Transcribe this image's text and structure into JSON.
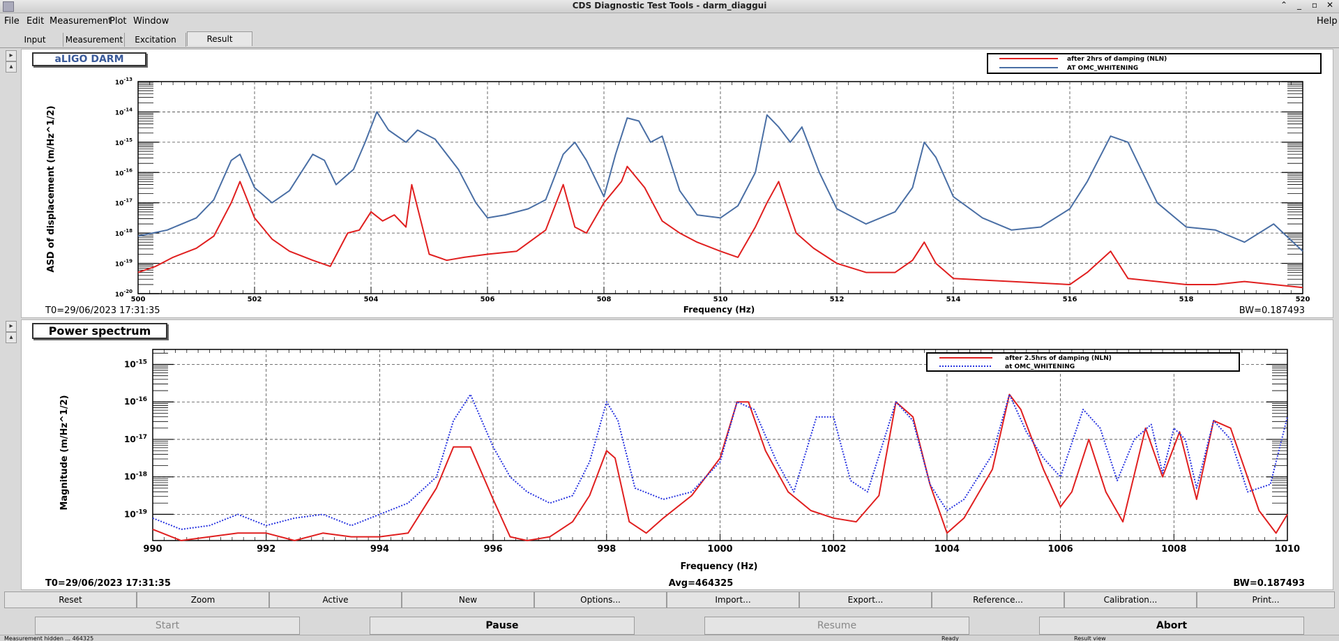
{
  "window": {
    "title": "CDS Diagnostic Test Tools - darm_diaggui"
  },
  "menu": {
    "file": "File",
    "edit": "Edit",
    "measurement": "Measurement",
    "plot": "Plot",
    "window": "Window",
    "help": "Help"
  },
  "tabs": [
    {
      "label": "Input"
    },
    {
      "label": "Measurement"
    },
    {
      "label": "Excitation"
    },
    {
      "label": "Result"
    }
  ],
  "plot1": {
    "title": "aLIGO DARM",
    "t0": "T0=29/06/2023 17:31:35",
    "bw": "BW=0.187493",
    "chart_data": {
      "type": "line",
      "xlabel": "Frequency (Hz)",
      "ylabel": "ASD of displacement (m/Hz^1/2)",
      "xlim": [
        500,
        520
      ],
      "ylim_log10": [
        -20,
        -13
      ],
      "log_y": true,
      "grid": true,
      "legend_position": "top-right",
      "x_ticks": [
        "500",
        "502",
        "504",
        "506",
        "508",
        "510",
        "512",
        "514",
        "516",
        "518",
        "520"
      ],
      "y_ticks": [
        "10^-13",
        "10^-14",
        "10^-15",
        "10^-16",
        "10^-17",
        "10^-18",
        "10^-19",
        "10^-20"
      ],
      "series": [
        {
          "name": "after 2hrs of damping (NLN)",
          "color": "#e02020",
          "style": "solid",
          "x": [
            500,
            500.3,
            500.6,
            501,
            501.3,
            501.6,
            501.75,
            502,
            502.3,
            502.6,
            503,
            503.3,
            503.6,
            503.8,
            504,
            504.2,
            504.4,
            504.6,
            504.7,
            505,
            505.3,
            505.6,
            506,
            506.5,
            507,
            507.3,
            507.5,
            507.7,
            508,
            508.3,
            508.4,
            508.7,
            509,
            509.3,
            509.6,
            510,
            510.3,
            510.6,
            510.8,
            511,
            511.3,
            511.6,
            512,
            512.5,
            513,
            513.3,
            513.5,
            513.7,
            514,
            515,
            516,
            516.3,
            516.7,
            517,
            517.5,
            518,
            518.5,
            519,
            520
          ],
          "y": [
            -19.3,
            -19.1,
            -18.8,
            -18.5,
            -18.1,
            -17.0,
            -16.3,
            -17.5,
            -18.2,
            -18.6,
            -18.9,
            -19.1,
            -18.0,
            -17.9,
            -17.3,
            -17.6,
            -17.4,
            -17.8,
            -16.4,
            -18.7,
            -18.9,
            -18.8,
            -18.7,
            -18.6,
            -17.9,
            -16.4,
            -17.8,
            -18.0,
            -17.0,
            -16.3,
            -15.8,
            -16.5,
            -17.6,
            -18.0,
            -18.3,
            -18.6,
            -18.8,
            -17.8,
            -17.0,
            -16.3,
            -18.0,
            -18.5,
            -19.0,
            -19.3,
            -19.3,
            -18.9,
            -18.3,
            -19.0,
            -19.5,
            -19.6,
            -19.7,
            -19.3,
            -18.6,
            -19.5,
            -19.6,
            -19.7,
            -19.7,
            -19.6,
            -19.8
          ]
        },
        {
          "name": "AT OMC_WHITENING",
          "color": "#4a6fa5",
          "style": "solid",
          "x": [
            500,
            500.5,
            501,
            501.3,
            501.6,
            501.75,
            502,
            502.3,
            502.6,
            503,
            503.2,
            503.4,
            503.7,
            503.9,
            504.1,
            504.3,
            504.6,
            504.8,
            505.1,
            505.5,
            505.8,
            506,
            506.3,
            506.7,
            507,
            507.3,
            507.5,
            507.7,
            508,
            508.2,
            508.4,
            508.6,
            508.8,
            509,
            509.3,
            509.6,
            510,
            510.3,
            510.6,
            510.8,
            511,
            511.2,
            511.4,
            511.7,
            512,
            512.5,
            513,
            513.3,
            513.5,
            513.7,
            514,
            514.5,
            515,
            515.5,
            516,
            516.3,
            516.7,
            517,
            517.5,
            518,
            518.5,
            519,
            519.5,
            520
          ],
          "y": [
            -18.1,
            -17.9,
            -17.5,
            -16.9,
            -15.6,
            -15.4,
            -16.5,
            -17.0,
            -16.6,
            -15.4,
            -15.6,
            -16.4,
            -15.9,
            -15.0,
            -14.0,
            -14.6,
            -15.0,
            -14.6,
            -14.9,
            -15.9,
            -17.0,
            -17.5,
            -17.4,
            -17.2,
            -16.9,
            -15.4,
            -15.0,
            -15.6,
            -16.8,
            -15.4,
            -14.2,
            -14.3,
            -15.0,
            -14.8,
            -16.6,
            -17.4,
            -17.5,
            -17.1,
            -16.0,
            -14.1,
            -14.5,
            -15.0,
            -14.5,
            -16.0,
            -17.2,
            -17.7,
            -17.3,
            -16.5,
            -15.0,
            -15.5,
            -16.8,
            -17.5,
            -17.9,
            -17.8,
            -17.2,
            -16.3,
            -14.8,
            -15.0,
            -17.0,
            -17.8,
            -17.9,
            -18.3,
            -17.7,
            -18.6
          ]
        }
      ]
    }
  },
  "plot2": {
    "title": "Power spectrum",
    "t0": "T0=29/06/2023 17:31:35",
    "avg": "Avg=464325",
    "bw": "BW=0.187493",
    "chart_data": {
      "type": "line",
      "xlabel": "Frequency (Hz)",
      "ylabel": "Magnitude (m/Hz^1/2)",
      "xlim": [
        990,
        1010
      ],
      "ylim_log10": [
        -19.7,
        -14.6
      ],
      "log_y": true,
      "grid": true,
      "legend_position": "top-right",
      "x_ticks": [
        "990",
        "992",
        "994",
        "996",
        "998",
        "1000",
        "1002",
        "1004",
        "1006",
        "1008",
        "1010"
      ],
      "y_ticks": [
        "10^-15",
        "10^-16",
        "10^-17",
        "10^-18",
        "10^-19"
      ],
      "series": [
        {
          "name": "after 2.5hrs of damping (NLN)",
          "color": "#e02020",
          "style": "solid",
          "x": [
            990,
            990.5,
            991,
            991.5,
            992,
            992.5,
            993,
            993.5,
            994,
            994.5,
            995,
            995.3,
            995.6,
            996,
            996.3,
            996.6,
            997,
            997.4,
            997.7,
            998,
            998.15,
            998.4,
            998.7,
            999,
            999.5,
            1000,
            1000.3,
            1000.5,
            1000.8,
            1001.2,
            1001.6,
            1002,
            1002.4,
            1002.8,
            1003.1,
            1003.4,
            1003.7,
            1004,
            1004.3,
            1004.8,
            1005.1,
            1005.3,
            1005.7,
            1006,
            1006.2,
            1006.5,
            1006.8,
            1007.1,
            1007.5,
            1007.8,
            1008.1,
            1008.4,
            1008.7,
            1009,
            1009.5,
            1009.8,
            1010
          ],
          "y": [
            -19.4,
            -19.7,
            -19.6,
            -19.5,
            -19.5,
            -19.7,
            -19.5,
            -19.6,
            -19.6,
            -19.5,
            -18.3,
            -17.2,
            -17.2,
            -18.6,
            -19.6,
            -19.7,
            -19.6,
            -19.2,
            -18.5,
            -17.3,
            -17.5,
            -19.2,
            -19.5,
            -19.1,
            -18.5,
            -17.5,
            -16.0,
            -16.0,
            -17.3,
            -18.4,
            -18.9,
            -19.1,
            -19.2,
            -18.5,
            -16.0,
            -16.4,
            -18.2,
            -19.5,
            -19.1,
            -17.8,
            -15.8,
            -16.2,
            -17.8,
            -18.8,
            -18.4,
            -17.0,
            -18.4,
            -19.2,
            -16.7,
            -18.0,
            -16.8,
            -18.6,
            -16.5,
            -16.7,
            -18.9,
            -19.5,
            -19.0
          ]
        },
        {
          "name": "at OMC_WHITENING",
          "color": "#2a36e0",
          "style": "dotted",
          "x": [
            990,
            990.5,
            991,
            991.5,
            992,
            992.5,
            993,
            993.5,
            994,
            994.5,
            995,
            995.3,
            995.6,
            996,
            996.3,
            996.6,
            997,
            997.4,
            997.7,
            998,
            998.2,
            998.5,
            999,
            999.5,
            1000,
            1000.3,
            1000.6,
            1001,
            1001.3,
            1001.7,
            1002,
            1002.3,
            1002.6,
            1003.1,
            1003.4,
            1003.7,
            1004,
            1004.3,
            1004.8,
            1005.1,
            1005.4,
            1005.7,
            1006,
            1006.4,
            1006.7,
            1007,
            1007.3,
            1007.6,
            1007.8,
            1008,
            1008.2,
            1008.4,
            1008.7,
            1009,
            1009.3,
            1009.7,
            1010
          ],
          "y": [
            -19.1,
            -19.4,
            -19.3,
            -19.0,
            -19.3,
            -19.1,
            -19.0,
            -19.3,
            -19.0,
            -18.7,
            -18.0,
            -16.5,
            -15.8,
            -17.2,
            -18.0,
            -18.4,
            -18.7,
            -18.5,
            -17.6,
            -16.0,
            -16.5,
            -18.3,
            -18.6,
            -18.4,
            -17.6,
            -16.0,
            -16.2,
            -17.6,
            -18.4,
            -16.4,
            -16.4,
            -18.1,
            -18.4,
            -16.0,
            -16.5,
            -18.2,
            -18.9,
            -18.6,
            -17.4,
            -15.8,
            -16.8,
            -17.5,
            -18.0,
            -16.2,
            -16.7,
            -18.1,
            -17.0,
            -16.6,
            -17.9,
            -16.7,
            -17.0,
            -18.3,
            -16.5,
            -17.0,
            -18.4,
            -18.2,
            -16.4
          ]
        }
      ]
    }
  },
  "buttons": [
    "Reset",
    "Zoom",
    "Active",
    "New",
    "Options...",
    "Import...",
    "Export...",
    "Reference...",
    "Calibration...",
    "Print..."
  ],
  "controls": {
    "start": "Start",
    "pause": "Pause",
    "resume": "Resume",
    "abort": "Abort"
  },
  "status": {
    "left": "Measurement hidden ... 464325",
    "mid": "Ready",
    "right": "Result view"
  }
}
